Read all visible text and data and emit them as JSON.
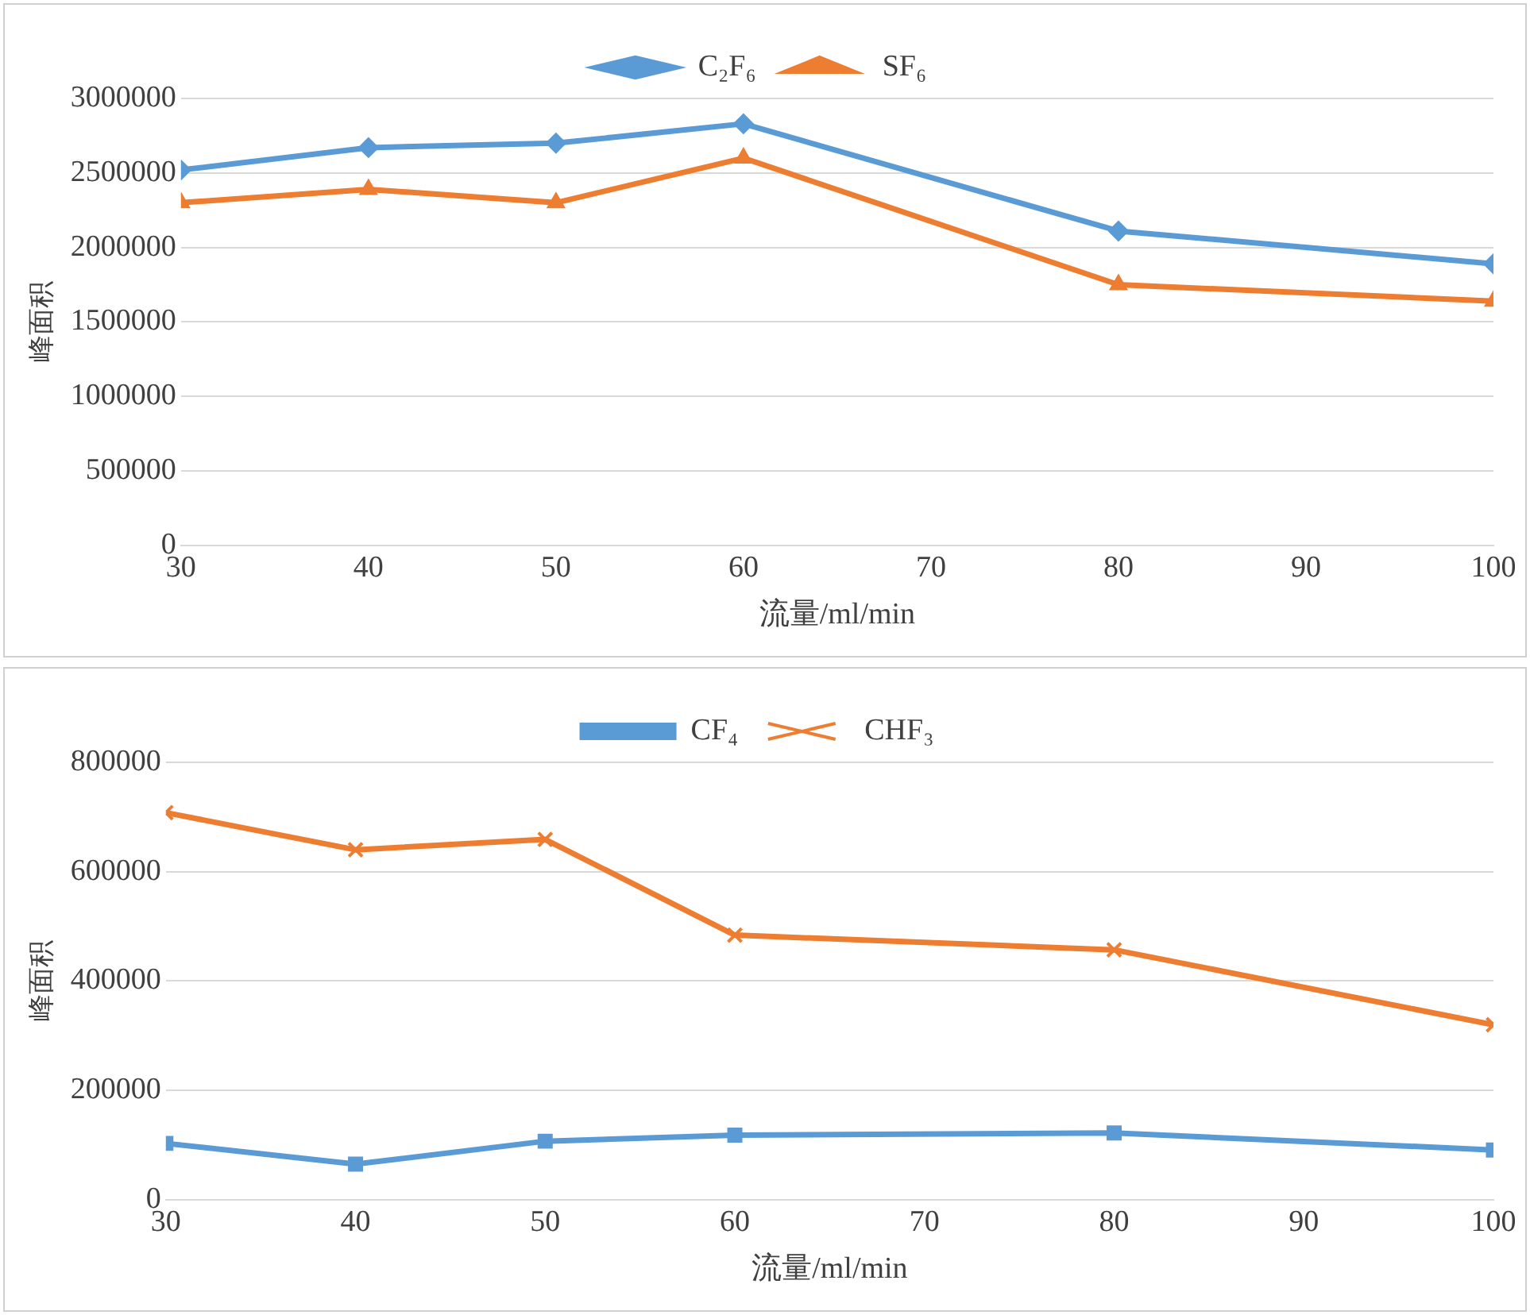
{
  "chart_data": [
    {
      "type": "line",
      "xlabel": "流量/ml/min",
      "ylabel": "峰面积",
      "x": [
        30,
        40,
        50,
        60,
        80,
        100
      ],
      "series": [
        {
          "name": "C₂F₆",
          "color": "#5b9bd5",
          "marker": "diamond",
          "values": [
            2520000,
            2670000,
            2700000,
            2830000,
            2110000,
            1890000
          ]
        },
        {
          "name": "SF₆",
          "color": "#ed7d31",
          "marker": "triangle",
          "values": [
            2300000,
            2390000,
            2300000,
            2600000,
            1750000,
            1640000
          ]
        }
      ],
      "xlim": [
        30,
        100
      ],
      "xticks": [
        30,
        40,
        50,
        60,
        70,
        80,
        90,
        100
      ],
      "ylim": [
        0,
        3000000
      ],
      "yticks": [
        0,
        500000,
        1000000,
        1500000,
        2000000,
        2500000,
        3000000
      ],
      "grid": "y",
      "legend": "top",
      "line_style": "solid"
    },
    {
      "type": "line",
      "xlabel": "流量/ml/min",
      "ylabel": "峰面积",
      "x": [
        30,
        40,
        50,
        60,
        80,
        100
      ],
      "series": [
        {
          "name": "CF₄",
          "color": "#5b9bd5",
          "marker": "square",
          "values": [
            103000,
            65000,
            107000,
            118000,
            122000,
            91000
          ]
        },
        {
          "name": "CHF₃",
          "color": "#ed7d31",
          "marker": "cross",
          "values": [
            708000,
            640000,
            659000,
            484000,
            457000,
            320000
          ]
        }
      ],
      "xlim": [
        30,
        100
      ],
      "xticks": [
        30,
        40,
        50,
        60,
        70,
        80,
        90,
        100
      ],
      "ylim": [
        0,
        800000
      ],
      "yticks": [
        0,
        200000,
        400000,
        600000,
        800000
      ],
      "grid": "y",
      "legend": "top",
      "line_style": "solid"
    }
  ]
}
